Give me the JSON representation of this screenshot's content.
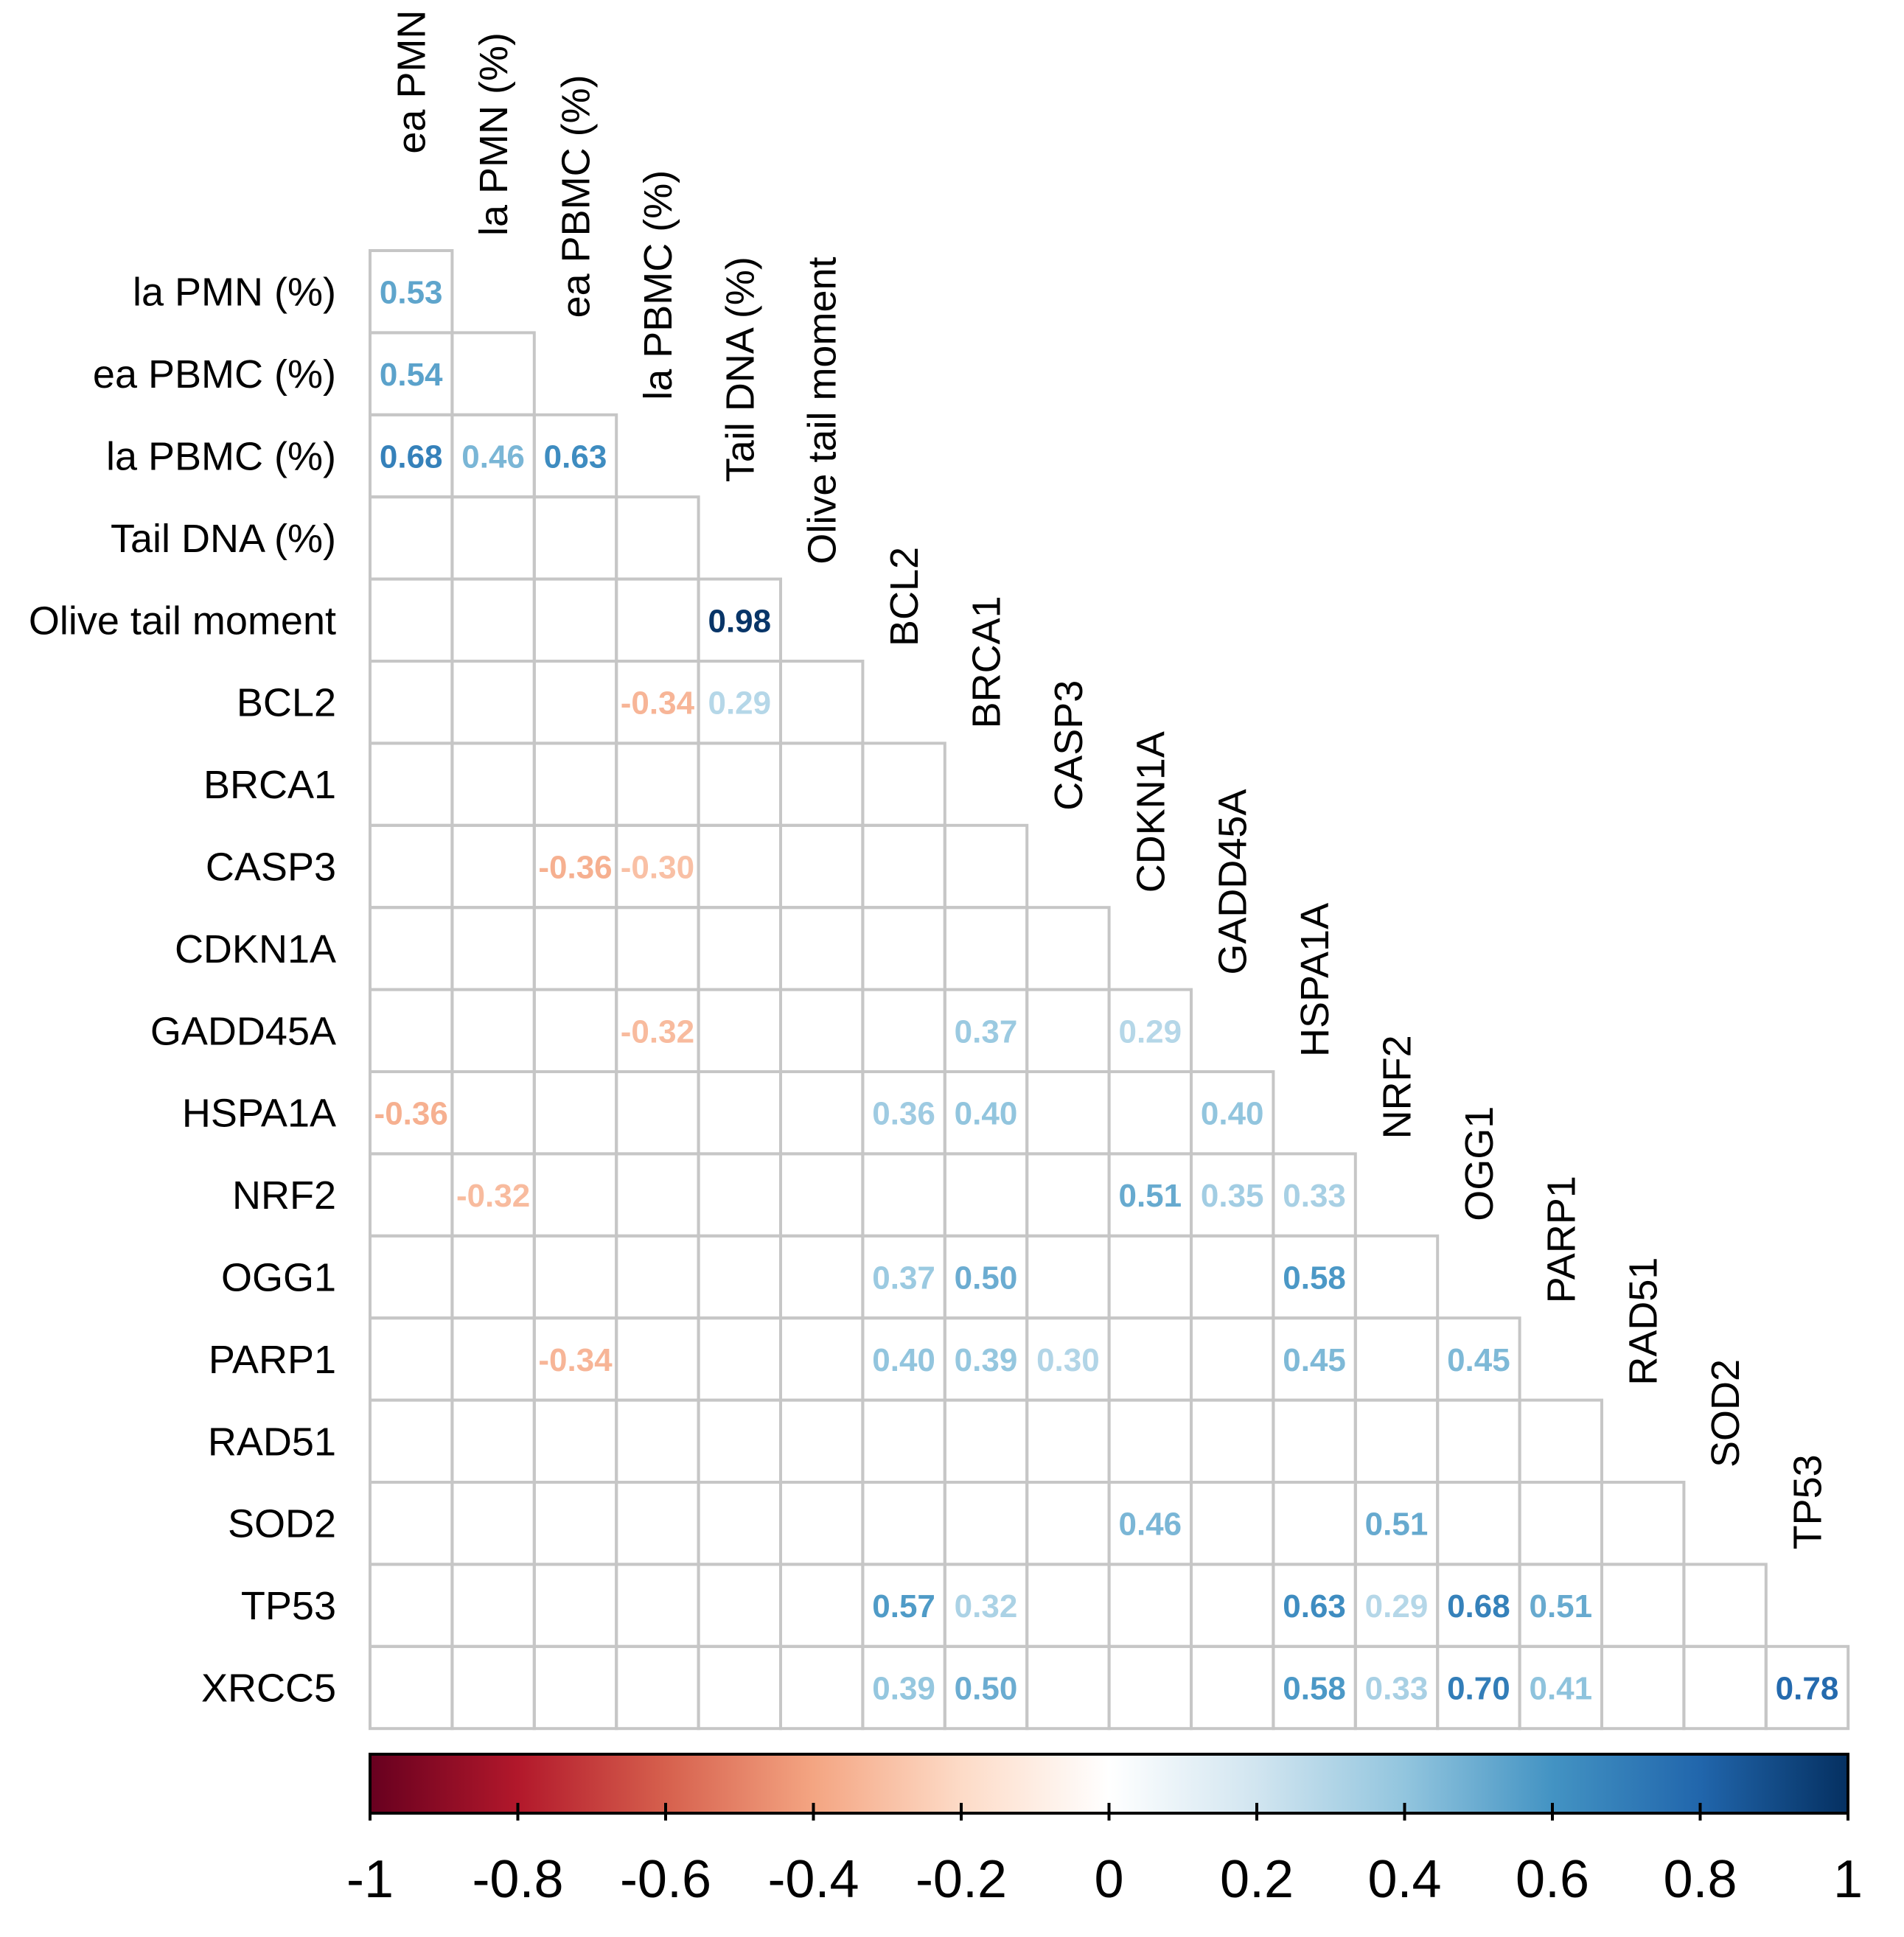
{
  "chart_data": {
    "type": "heatmap",
    "layout": "lower-triangle correlation matrix",
    "variables": [
      "ea PMN (%)",
      "la PMN (%)",
      "ea PBMC (%)",
      "la PBMC (%)",
      "Tail DNA (%)",
      "Olive tail moment",
      "BCL2",
      "BRCA1",
      "CASP3",
      "CDKN1A",
      "GADD45A",
      "HSPA1A",
      "NRF2",
      "OGG1",
      "PARP1",
      "RAD51",
      "SOD2",
      "TP53",
      "XRCC5"
    ],
    "column_labels": [
      "ea PMN (%)",
      "la PMN (%)",
      "ea PBMC (%)",
      "la PBMC (%)",
      "Tail DNA (%)",
      "Olive tail moment",
      "BCL2",
      "BRCA1",
      "CASP3",
      "CDKN1A",
      "GADD45A",
      "HSPA1A",
      "NRF2",
      "OGG1",
      "PARP1",
      "RAD51",
      "SOD2",
      "TP53"
    ],
    "row_labels": [
      "la PMN (%)",
      "ea PBMC (%)",
      "la PBMC (%)",
      "Tail DNA (%)",
      "Olive tail moment",
      "BCL2",
      "BRCA1",
      "CASP3",
      "CDKN1A",
      "GADD45A",
      "HSPA1A",
      "NRF2",
      "OGG1",
      "PARP1",
      "RAD51",
      "SOD2",
      "TP53",
      "XRCC5"
    ],
    "correlations": [
      {
        "row": "la PMN (%)",
        "col": "ea PMN (%)",
        "value": 0.53,
        "label": "0.53"
      },
      {
        "row": "ea PBMC (%)",
        "col": "ea PMN (%)",
        "value": 0.54,
        "label": "0.54"
      },
      {
        "row": "la PBMC (%)",
        "col": "ea PMN (%)",
        "value": 0.68,
        "label": "0.68"
      },
      {
        "row": "la PBMC (%)",
        "col": "la PMN (%)",
        "value": 0.46,
        "label": "0.46"
      },
      {
        "row": "la PBMC (%)",
        "col": "ea PBMC (%)",
        "value": 0.63,
        "label": "0.63"
      },
      {
        "row": "Olive tail moment",
        "col": "Tail DNA (%)",
        "value": 0.98,
        "label": "0.98"
      },
      {
        "row": "BCL2",
        "col": "la PBMC (%)",
        "value": -0.34,
        "label": "-0.34"
      },
      {
        "row": "BCL2",
        "col": "Tail DNA (%)",
        "value": 0.29,
        "label": "0.29"
      },
      {
        "row": "CASP3",
        "col": "ea PBMC (%)",
        "value": -0.36,
        "label": "-0.36"
      },
      {
        "row": "CASP3",
        "col": "la PBMC (%)",
        "value": -0.3,
        "label": "-0.30"
      },
      {
        "row": "GADD45A",
        "col": "la PBMC (%)",
        "value": -0.32,
        "label": "-0.32"
      },
      {
        "row": "GADD45A",
        "col": "BRCA1",
        "value": 0.37,
        "label": "0.37"
      },
      {
        "row": "GADD45A",
        "col": "CDKN1A",
        "value": 0.29,
        "label": "0.29"
      },
      {
        "row": "HSPA1A",
        "col": "ea PMN (%)",
        "value": -0.36,
        "label": "-0.36"
      },
      {
        "row": "HSPA1A",
        "col": "BCL2",
        "value": 0.36,
        "label": "0.36"
      },
      {
        "row": "HSPA1A",
        "col": "BRCA1",
        "value": 0.4,
        "label": "0.40"
      },
      {
        "row": "HSPA1A",
        "col": "GADD45A",
        "value": 0.4,
        "label": "0.40"
      },
      {
        "row": "NRF2",
        "col": "la PMN (%)",
        "value": -0.32,
        "label": "-0.32"
      },
      {
        "row": "NRF2",
        "col": "CDKN1A",
        "value": 0.51,
        "label": "0.51"
      },
      {
        "row": "NRF2",
        "col": "GADD45A",
        "value": 0.35,
        "label": "0.35"
      },
      {
        "row": "NRF2",
        "col": "HSPA1A",
        "value": 0.33,
        "label": "0.33"
      },
      {
        "row": "OGG1",
        "col": "BCL2",
        "value": 0.37,
        "label": "0.37"
      },
      {
        "row": "OGG1",
        "col": "BRCA1",
        "value": 0.5,
        "label": "0.50"
      },
      {
        "row": "OGG1",
        "col": "HSPA1A",
        "value": 0.58,
        "label": "0.58"
      },
      {
        "row": "PARP1",
        "col": "ea PBMC (%)",
        "value": -0.34,
        "label": "-0.34"
      },
      {
        "row": "PARP1",
        "col": "BCL2",
        "value": 0.4,
        "label": "0.40"
      },
      {
        "row": "PARP1",
        "col": "BRCA1",
        "value": 0.39,
        "label": "0.39"
      },
      {
        "row": "PARP1",
        "col": "CASP3",
        "value": 0.3,
        "label": "0.30"
      },
      {
        "row": "PARP1",
        "col": "HSPA1A",
        "value": 0.45,
        "label": "0.45"
      },
      {
        "row": "PARP1",
        "col": "OGG1",
        "value": 0.45,
        "label": "0.45"
      },
      {
        "row": "SOD2",
        "col": "CDKN1A",
        "value": 0.46,
        "label": "0.46"
      },
      {
        "row": "SOD2",
        "col": "NRF2",
        "value": 0.51,
        "label": "0.51"
      },
      {
        "row": "TP53",
        "col": "BCL2",
        "value": 0.57,
        "label": "0.57"
      },
      {
        "row": "TP53",
        "col": "BRCA1",
        "value": 0.32,
        "label": "0.32"
      },
      {
        "row": "TP53",
        "col": "HSPA1A",
        "value": 0.63,
        "label": "0.63"
      },
      {
        "row": "TP53",
        "col": "NRF2",
        "value": 0.29,
        "label": "0.29"
      },
      {
        "row": "TP53",
        "col": "OGG1",
        "value": 0.68,
        "label": "0.68"
      },
      {
        "row": "TP53",
        "col": "PARP1",
        "value": 0.51,
        "label": "0.51"
      },
      {
        "row": "XRCC5",
        "col": "BCL2",
        "value": 0.39,
        "label": "0.39"
      },
      {
        "row": "XRCC5",
        "col": "BRCA1",
        "value": 0.5,
        "label": "0.50"
      },
      {
        "row": "XRCC5",
        "col": "HSPA1A",
        "value": 0.58,
        "label": "0.58"
      },
      {
        "row": "XRCC5",
        "col": "NRF2",
        "value": 0.33,
        "label": "0.33"
      },
      {
        "row": "XRCC5",
        "col": "OGG1",
        "value": 0.7,
        "label": "0.70"
      },
      {
        "row": "XRCC5",
        "col": "PARP1",
        "value": 0.41,
        "label": "0.41"
      },
      {
        "row": "XRCC5",
        "col": "TP53",
        "value": 0.78,
        "label": "0.78"
      }
    ],
    "colorbar": {
      "range": [
        -1,
        1
      ],
      "ticks": [
        "-1",
        "-0.8",
        "-0.6",
        "-0.4",
        "-0.2",
        "0",
        "0.2",
        "0.4",
        "0.6",
        "0.8",
        "1"
      ],
      "tick_values": [
        -1,
        -0.8,
        -0.6,
        -0.4,
        -0.2,
        0,
        0.2,
        0.4,
        0.6,
        0.8,
        1
      ],
      "palette": [
        "#67001F",
        "#B2182B",
        "#D6604D",
        "#F4A582",
        "#FDDBC7",
        "#FFFFFF",
        "#D1E5F0",
        "#92C5DE",
        "#4393C3",
        "#2166AC",
        "#053061"
      ],
      "placement": "bottom"
    },
    "grid_color": "#c6c6c6"
  }
}
